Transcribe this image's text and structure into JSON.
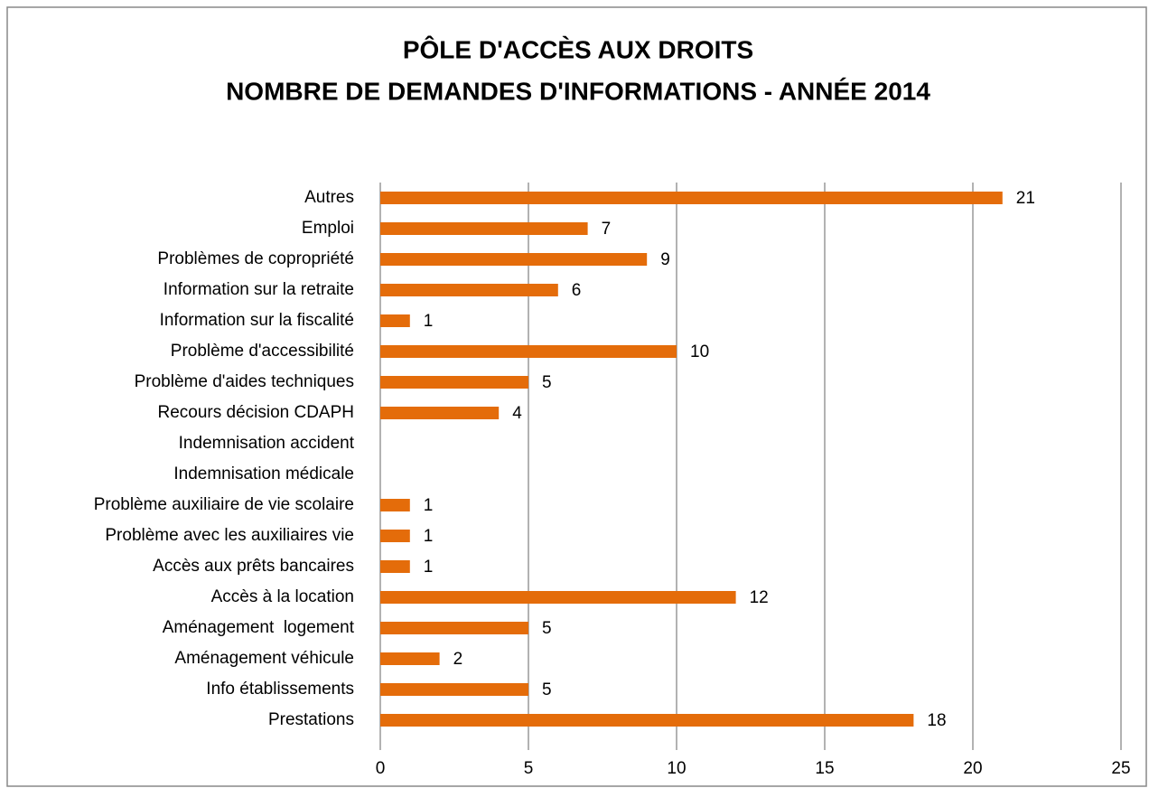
{
  "chart_data": {
    "type": "bar",
    "orientation": "horizontal",
    "title": [
      "PÔLE D'ACCÈS AUX DROITS",
      "NOMBRE DE DEMANDES D'INFORMATIONS - ANNÉE 2014"
    ],
    "categories": [
      "Autres",
      "Emploi",
      "Problèmes de copropriété",
      "Information sur la retraite",
      "Information sur la fiscalité",
      "Problème d'accessibilité",
      "Problème d'aides techniques",
      "Recours décision CDAPH",
      "Indemnisation accident",
      "Indemnisation médicale",
      "Problème auxiliaire de vie scolaire",
      "Problème avec les auxiliaires vie",
      "Accès aux prêts bancaires",
      "Accès à la location",
      "Aménagement  logement",
      "Aménagement véhicule",
      "Info établissements",
      "Prestations"
    ],
    "values": [
      21,
      7,
      9,
      6,
      1,
      10,
      5,
      4,
      null,
      null,
      1,
      1,
      1,
      12,
      5,
      2,
      5,
      18
    ],
    "color": "#e46c0a",
    "xlim": [
      0,
      25
    ],
    "xticks": [
      0,
      5,
      10,
      15,
      20,
      25
    ],
    "grid": true
  }
}
